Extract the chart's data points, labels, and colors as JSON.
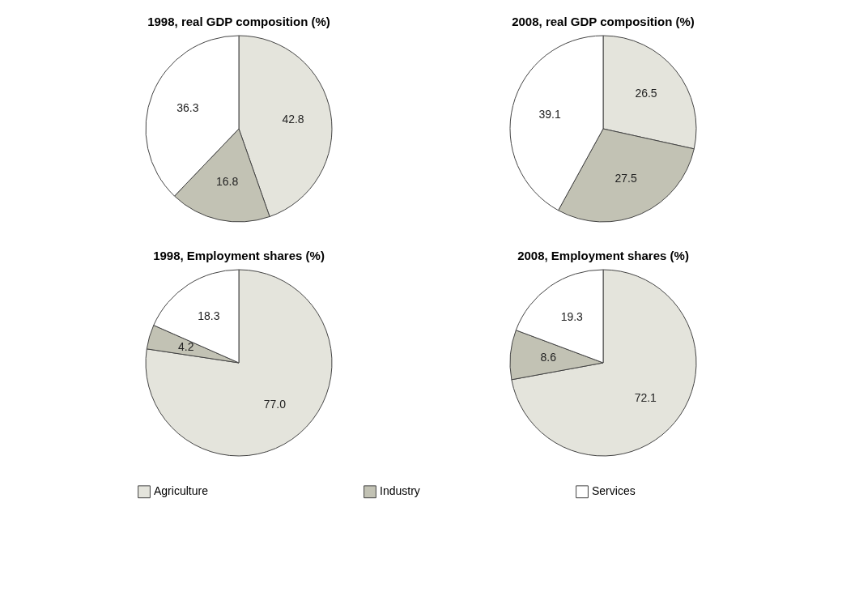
{
  "chart_data": [
    {
      "type": "pie",
      "title": "1998, real GDP composition (%)",
      "categories": [
        "Agriculture",
        "Industry",
        "Services"
      ],
      "values": [
        42.8,
        16.8,
        36.3
      ],
      "value_labels": [
        "42.8",
        "16.8",
        "36.3"
      ],
      "colors": [
        "#e4e4dc",
        "#c2c2b4",
        "#ffffff"
      ],
      "legend": "bottom"
    },
    {
      "type": "pie",
      "title": "2008, real GDP composition (%)",
      "categories": [
        null,
        null,
        null
      ],
      "values": [
        26.5,
        27.5,
        39.1
      ],
      "value_labels": [
        "26.5",
        "27.5",
        "39.1"
      ],
      "colors": [
        "#e4e4dc",
        "#c2c2b4",
        "#ffffff"
      ]
    },
    {
      "type": "pie",
      "title": "1998, Employment shares (%)",
      "categories": [
        null,
        null,
        null
      ],
      "values": [
        77.0,
        4.2,
        18.3
      ],
      "value_labels": [
        "77.0",
        "4.2",
        "18.3"
      ],
      "colors": [
        "#e4e4dc",
        "#c2c2b4",
        "#ffffff"
      ]
    },
    {
      "type": "pie",
      "title": "2008, Employment shares (%)",
      "categories": [
        null,
        null,
        null
      ],
      "values": [
        72.1,
        8.6,
        19.3
      ],
      "value_labels": [
        "72.1",
        "8.6",
        "19.3"
      ],
      "colors": [
        "#e4e4dc",
        "#c2c2b4",
        "#ffffff"
      ]
    }
  ]
}
